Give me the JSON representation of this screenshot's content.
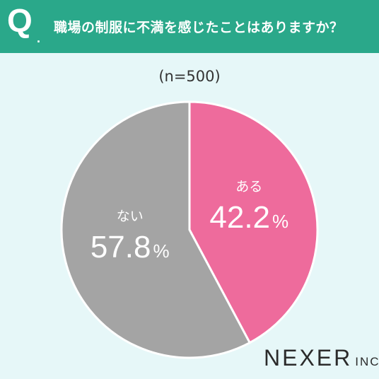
{
  "header": {
    "q_mark": "Q",
    "q_dot": ".",
    "question": "職場の制服に不満を感じたことはありますか？"
  },
  "sample_label": "(n=500)",
  "colors": {
    "header_bg": "#2aa88a",
    "page_bg": "#e6f7f8",
    "aru": "#ee6b9c",
    "nai": "#a4a4a4",
    "label_text": "#ffffff"
  },
  "logo": {
    "main": "NEXER",
    "suffix": "INC."
  },
  "chart_data": {
    "type": "pie",
    "title": "",
    "slices": [
      {
        "label": "ある",
        "value": 42.2,
        "display": "42.2",
        "unit": "%",
        "color": "#ee6b9c"
      },
      {
        "label": "ない",
        "value": 57.8,
        "display": "57.8",
        "unit": "%",
        "color": "#a4a4a4"
      }
    ],
    "start_angle": "top",
    "direction": "clockwise"
  }
}
